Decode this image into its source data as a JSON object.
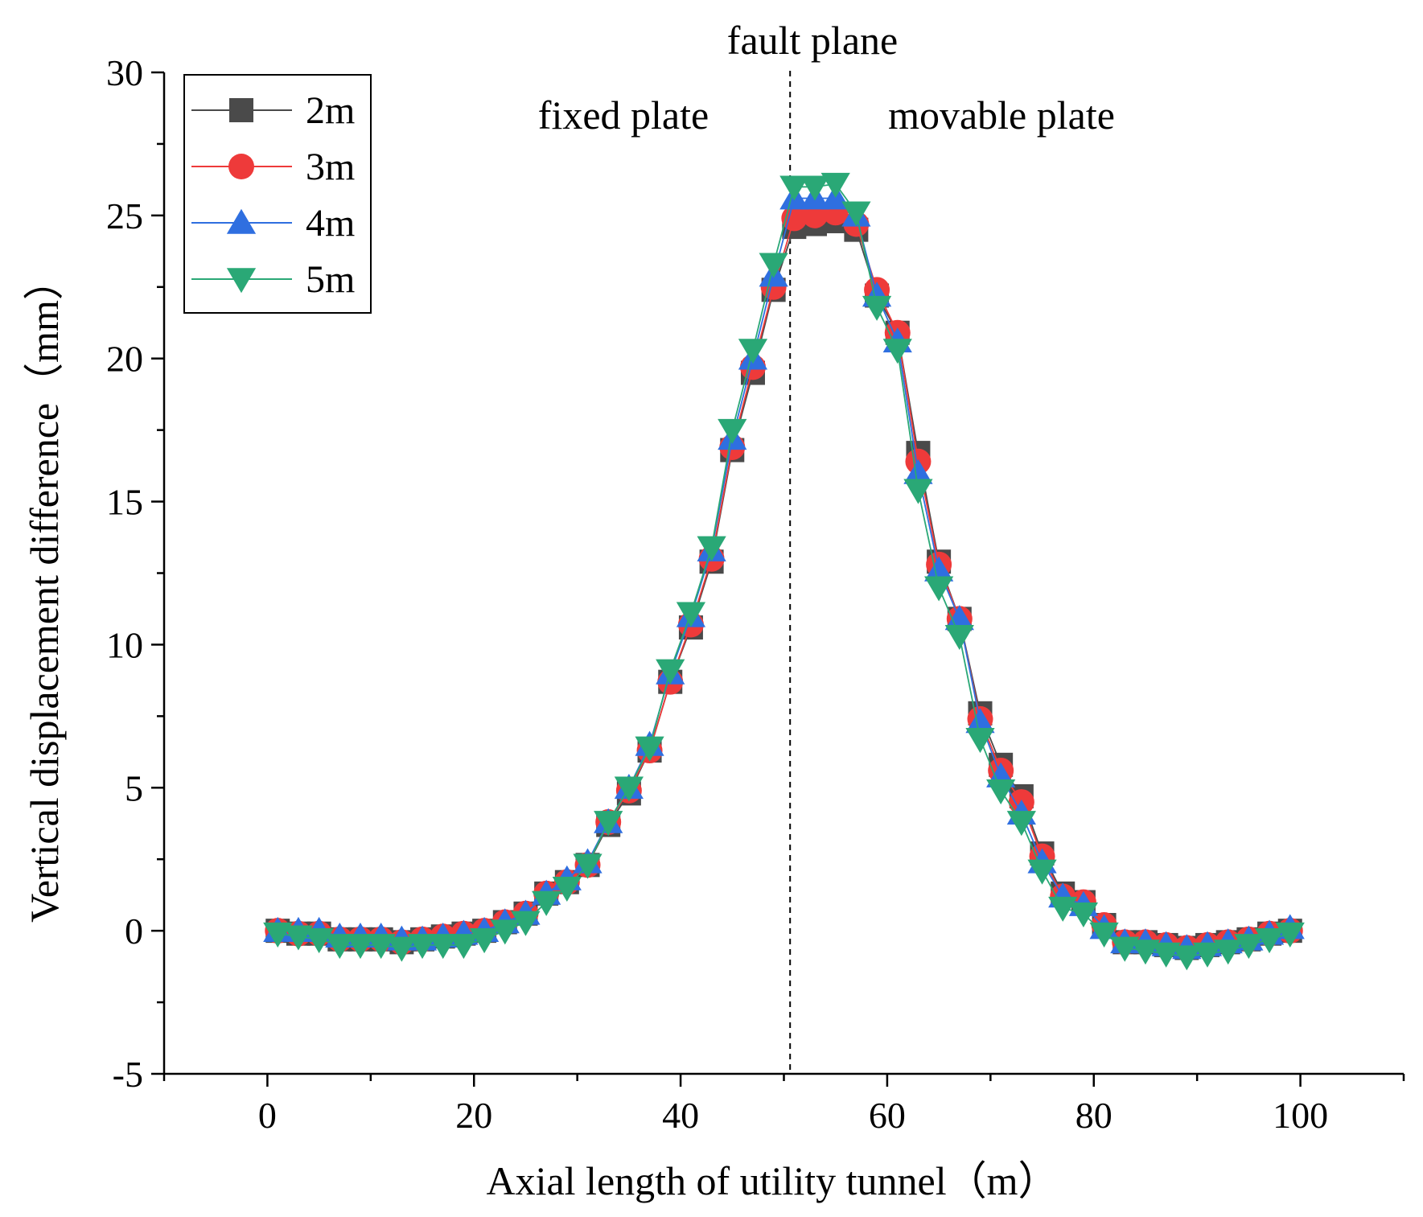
{
  "chart_data": {
    "type": "line",
    "xlabel": "Axial length of utility tunnel（m）",
    "ylabel": "Vertical displacement difference（mm）",
    "xlim": [
      -10,
      110
    ],
    "ylim": [
      -5,
      30
    ],
    "xticks": [
      0,
      20,
      40,
      60,
      80,
      100
    ],
    "yticks": [
      -5,
      0,
      5,
      10,
      15,
      20,
      25,
      30
    ],
    "grid": false,
    "legend_position": "top-left",
    "annotations": {
      "fault_line": "fault plane",
      "fault_x": 50.6,
      "left_region": "fixed plate",
      "right_region": "movable plate"
    },
    "x": [
      1,
      3,
      5,
      7,
      9,
      11,
      13,
      15,
      17,
      19,
      21,
      23,
      25,
      27,
      29,
      31,
      33,
      35,
      37,
      39,
      41,
      43,
      45,
      47,
      49,
      51,
      53,
      55,
      57,
      59,
      61,
      63,
      65,
      67,
      69,
      71,
      73,
      75,
      77,
      79,
      81,
      83,
      85,
      87,
      89,
      91,
      93,
      95,
      97,
      99
    ],
    "series": [
      {
        "name": "2m",
        "color": "#4a4a4a",
        "marker": "square",
        "values": [
          0.0,
          -0.1,
          -0.1,
          -0.3,
          -0.3,
          -0.3,
          -0.4,
          -0.3,
          -0.2,
          -0.1,
          0.0,
          0.3,
          0.6,
          1.3,
          1.7,
          2.3,
          3.7,
          4.8,
          6.3,
          8.7,
          10.6,
          12.9,
          16.8,
          19.5,
          22.4,
          24.6,
          24.7,
          24.8,
          24.5,
          22.2,
          20.9,
          16.7,
          12.9,
          10.9,
          7.6,
          5.8,
          4.7,
          2.7,
          1.3,
          1.0,
          0.2,
          -0.4,
          -0.4,
          -0.5,
          -0.6,
          -0.5,
          -0.4,
          -0.3,
          -0.1,
          0.0
        ]
      },
      {
        "name": "3m",
        "color": "#ee3a3a",
        "marker": "circle",
        "values": [
          0.0,
          -0.1,
          -0.1,
          -0.3,
          -0.3,
          -0.3,
          -0.4,
          -0.3,
          -0.2,
          -0.1,
          0.0,
          0.3,
          0.6,
          1.3,
          1.7,
          2.3,
          3.8,
          4.9,
          6.3,
          8.7,
          10.7,
          13.0,
          16.9,
          19.7,
          22.5,
          24.9,
          25.0,
          25.1,
          24.7,
          22.4,
          20.9,
          16.4,
          12.8,
          10.9,
          7.4,
          5.6,
          4.5,
          2.6,
          1.2,
          1.0,
          0.2,
          -0.4,
          -0.4,
          -0.5,
          -0.6,
          -0.5,
          -0.4,
          -0.3,
          -0.1,
          0.0
        ]
      },
      {
        "name": "4m",
        "color": "#2f6fe0",
        "marker": "triangle-up",
        "values": [
          0.0,
          0.0,
          0.0,
          -0.2,
          -0.2,
          -0.2,
          -0.3,
          -0.3,
          -0.2,
          -0.1,
          0.0,
          0.3,
          0.6,
          1.3,
          1.8,
          2.4,
          3.8,
          5.0,
          6.5,
          9.0,
          11.0,
          13.3,
          17.2,
          20.0,
          22.9,
          25.6,
          25.6,
          25.6,
          25.0,
          22.2,
          20.6,
          16.0,
          12.6,
          10.9,
          7.3,
          5.4,
          4.1,
          2.4,
          1.2,
          0.9,
          0.1,
          -0.4,
          -0.4,
          -0.5,
          -0.6,
          -0.5,
          -0.4,
          -0.3,
          -0.1,
          0.1
        ]
      },
      {
        "name": "5m",
        "color": "#2aa876",
        "marker": "triangle-down",
        "values": [
          -0.1,
          -0.2,
          -0.3,
          -0.5,
          -0.5,
          -0.5,
          -0.6,
          -0.5,
          -0.5,
          -0.5,
          -0.3,
          0.0,
          0.3,
          1.0,
          1.5,
          2.3,
          3.8,
          5.0,
          6.4,
          9.1,
          11.1,
          13.4,
          17.5,
          20.3,
          23.3,
          26.0,
          26.0,
          26.1,
          25.1,
          21.8,
          20.3,
          15.4,
          12.0,
          10.3,
          6.7,
          4.9,
          3.8,
          2.1,
          0.8,
          0.6,
          -0.1,
          -0.6,
          -0.7,
          -0.8,
          -0.9,
          -0.8,
          -0.7,
          -0.5,
          -0.3,
          -0.1
        ]
      }
    ]
  }
}
